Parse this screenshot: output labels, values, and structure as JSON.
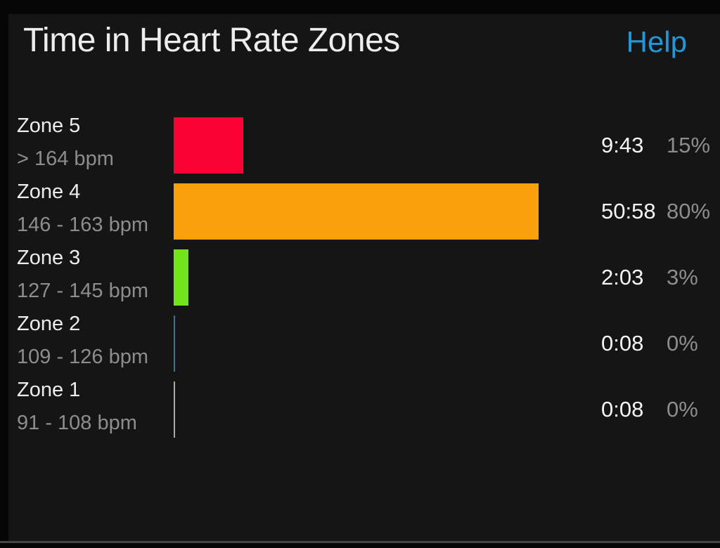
{
  "header": {
    "title": "Time in Heart Rate Zones",
    "help_label": "Help"
  },
  "zones": [
    {
      "name": "Zone 5",
      "range": "> 164 bpm",
      "time": "9:43",
      "percent": "15%",
      "color": "#fa0233"
    },
    {
      "name": "Zone 4",
      "range": "146 - 163 bpm",
      "time": "50:58",
      "percent": "80%",
      "color": "#faa00c"
    },
    {
      "name": "Zone 3",
      "range": "127 - 145 bpm",
      "time": "2:03",
      "percent": "3%",
      "color": "#72e31d"
    },
    {
      "name": "Zone 2",
      "range": "109 - 126 bpm",
      "time": "0:08",
      "percent": "0%",
      "color": "#3d7186"
    },
    {
      "name": "Zone 1",
      "range": "91 - 108 bpm",
      "time": "0:08",
      "percent": "0%",
      "color": "#a9a9a9"
    }
  ],
  "chart_data": {
    "type": "bar",
    "orientation": "horizontal",
    "title": "Time in Heart Rate Zones",
    "categories": [
      "Zone 5",
      "Zone 4",
      "Zone 3",
      "Zone 2",
      "Zone 1"
    ],
    "category_ranges": [
      "> 164 bpm",
      "146 - 163 bpm",
      "127 - 145 bpm",
      "109 - 126 bpm",
      "91 - 108 bpm"
    ],
    "values_time": [
      "9:43",
      "50:58",
      "2:03",
      "0:08",
      "0:08"
    ],
    "values_percent": [
      15,
      80,
      3,
      0,
      0
    ],
    "bar_colors": [
      "#fa0233",
      "#faa00c",
      "#72e31d",
      "#3d7186",
      "#a9a9a9"
    ],
    "xlim_percent": [
      0,
      100
    ],
    "grid": false,
    "legend": false
  },
  "colors": {
    "background": "#151515",
    "frame": "#060606",
    "help_link": "#2196d8",
    "primary_text": "#ededed",
    "secondary_text": "#8d8d8d",
    "divider": "#464646"
  }
}
